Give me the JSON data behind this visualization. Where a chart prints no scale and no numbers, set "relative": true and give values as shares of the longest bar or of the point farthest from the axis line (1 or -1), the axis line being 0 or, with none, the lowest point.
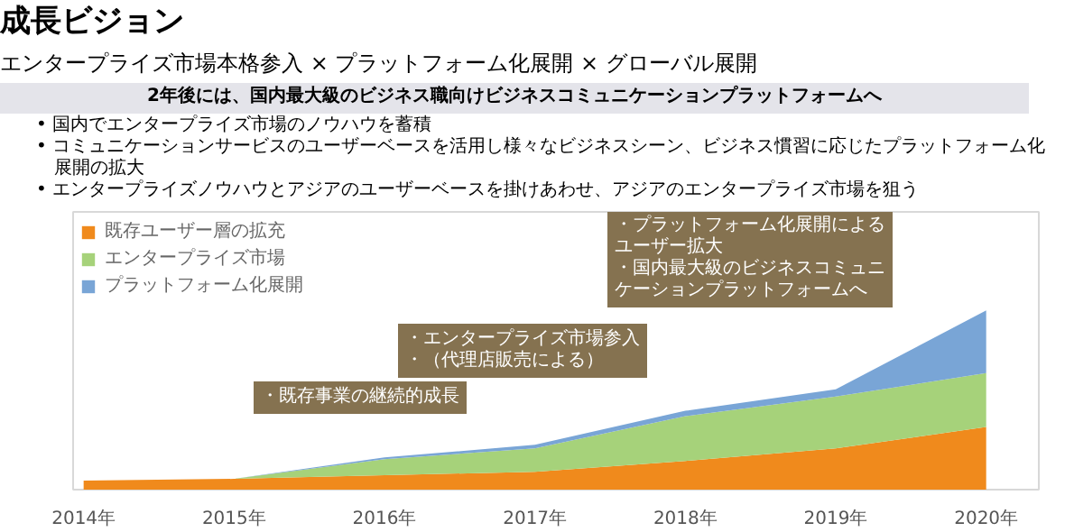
{
  "chart_data": {
    "type": "area",
    "title": "成長ビジョン",
    "subtitle": "エンタープライズ市場本格参入 × プラットフォーム化展開 × グローバル展開",
    "annotations": [
      "2年後には、国内最大級のビジネス職向けビジネスコミュニケーションプラットフォームへ",
      "• 国内でエンタープライズ市場のノウハウを蓄積",
      "• コミュニケーションサービスのユーザーベースを活用し様々なビジネスシーン、ビジネス慣習に応じたプラットフォーム化展開の拡大",
      "• エンタープライズノウハウとアジアのユーザーベースを掛けあわせ、アジアのエンタープライズ市場を狙う",
      "・既存事業の継続的成長",
      "・エンタープライズ市場参入",
      "・（代理店販売による）",
      "・プラットフォーム化展開によるユーザー拡大",
      "・国内最大級のビジネスコミュニケーションプラットフォームへ"
    ],
    "categories": [
      "2014年",
      "2015年",
      "2016年",
      "2017年",
      "2018年",
      "2019年",
      "2020年"
    ],
    "relative": true,
    "stacked": true,
    "legend": "top left",
    "series": [
      {
        "name": "既存ユーザー層の拡充",
        "color": "#f08a1c",
        "values": [
          0.05,
          0.06,
          0.08,
          0.1,
          0.16,
          0.23,
          0.35
        ]
      },
      {
        "name": "エンタープライズ市場",
        "color": "#a6d27a",
        "values": [
          0,
          0,
          0.09,
          0.13,
          0.25,
          0.29,
          0.3
        ]
      },
      {
        "name": "プラットフォーム化展開",
        "color": "#79a5d6",
        "values": [
          0,
          0,
          0.01,
          0.02,
          0.03,
          0.04,
          0.35
        ]
      }
    ]
  }
}
